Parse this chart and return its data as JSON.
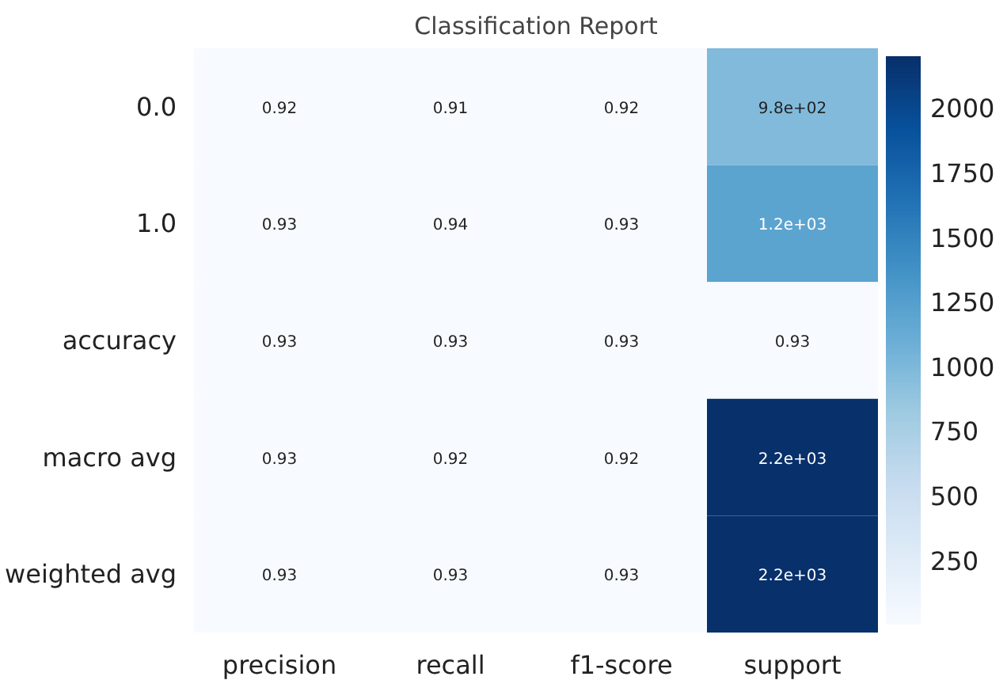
{
  "chart_data": {
    "type": "heatmap",
    "title": "Classification Report",
    "categories": [
      "precision",
      "recall",
      "f1-score",
      "support"
    ],
    "y_categories": [
      "0.0",
      "1.0",
      "accuracy",
      "macro avg",
      "weighted avg"
    ],
    "cells": [
      [
        0.92,
        0.91,
        0.92,
        980
      ],
      [
        0.93,
        0.94,
        0.93,
        1200
      ],
      [
        0.93,
        0.93,
        0.93,
        0.93
      ],
      [
        0.93,
        0.92,
        0.92,
        2200
      ],
      [
        0.93,
        0.93,
        0.93,
        2200
      ]
    ],
    "cell_labels": [
      [
        "0.92",
        "0.91",
        "0.92",
        "9.8e+02"
      ],
      [
        "0.93",
        "0.94",
        "0.93",
        "1.2e+03"
      ],
      [
        "0.93",
        "0.93",
        "0.93",
        "0.93"
      ],
      [
        "0.93",
        "0.92",
        "0.92",
        "2.2e+03"
      ],
      [
        "0.93",
        "0.93",
        "0.93",
        "2.2e+03"
      ]
    ],
    "clim": [
      0.91,
      2200
    ],
    "cticks": [
      250,
      500,
      750,
      1000,
      1250,
      1500,
      1750,
      2000
    ]
  }
}
